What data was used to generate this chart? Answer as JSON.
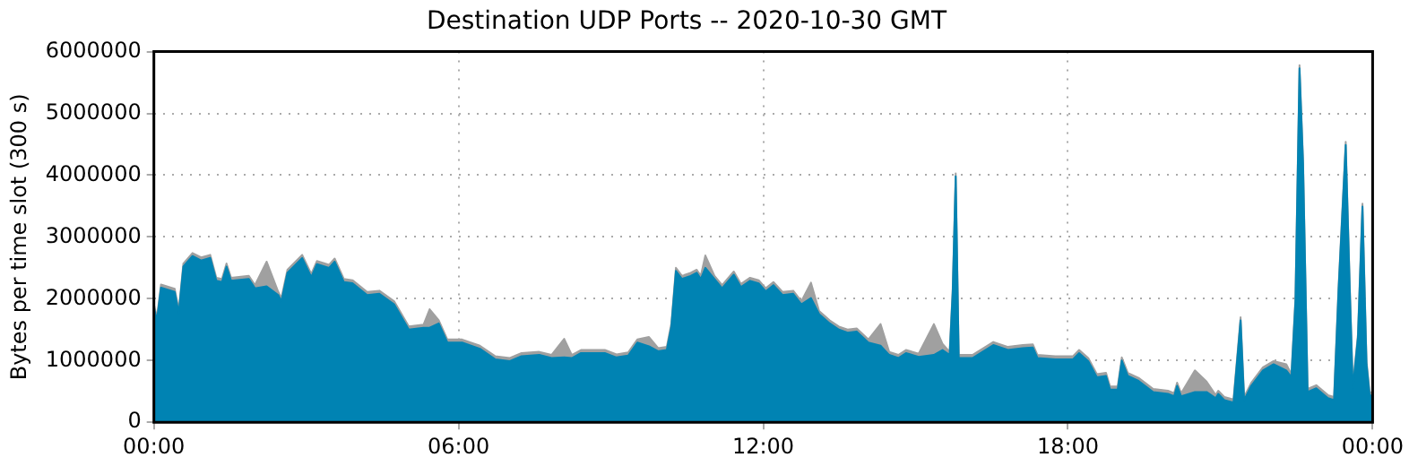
{
  "chart_data": {
    "type": "area",
    "title": "Destination UDP Ports -- 2020-10-30 GMT",
    "ylabel": "Bytes per time slot (300 s)",
    "x": [
      0,
      0.06,
      0.14,
      0.41,
      0.49,
      0.58,
      0.76,
      0.93,
      1.11,
      1.23,
      1.34,
      1.43,
      1.52,
      1.87,
      1.99,
      2.22,
      2.45,
      2.51,
      2.63,
      2.92,
      3.1,
      3.21,
      3.45,
      3.56,
      3.74,
      3.91,
      4.2,
      4.44,
      4.73,
      5.02,
      5.31,
      5.43,
      5.61,
      5.78,
      6.07,
      6.42,
      6.72,
      7.01,
      7.24,
      7.59,
      7.83,
      8.08,
      8.23,
      8.41,
      8.88,
      9.11,
      9.34,
      9.52,
      9.75,
      9.93,
      10.1,
      10.19,
      10.28,
      10.4,
      10.57,
      10.69,
      10.77,
      10.86,
      11.04,
      11.19,
      11.42,
      11.56,
      11.74,
      11.91,
      12.05,
      12.2,
      12.38,
      12.59,
      12.75,
      12.94,
      13.1,
      13.31,
      13.49,
      13.66,
      13.84,
      14.07,
      14.31,
      14.48,
      14.66,
      14.81,
      15.06,
      15.36,
      15.53,
      15.67,
      15.73,
      15.79,
      15.85,
      16.12,
      16.53,
      16.82,
      17.11,
      17.31,
      17.4,
      17.75,
      18.1,
      18.22,
      18.4,
      18.57,
      18.75,
      18.83,
      18.98,
      19.06,
      19.18,
      19.39,
      19.68,
      19.97,
      20.09,
      20.15,
      20.23,
      20.5,
      20.73,
      20.91,
      20.96,
      21.08,
      21.26,
      21.4,
      21.47,
      21.61,
      21.84,
      22.05,
      22.3,
      22.4,
      22.48,
      22.56,
      22.63,
      22.72,
      22.89,
      23.12,
      23.24,
      23.33,
      23.47,
      23.55,
      23.61,
      23.71,
      23.8,
      23.88,
      23.94,
      24
    ],
    "series": [
      {
        "color": "#0083b3",
        "values": [
          1860000,
          1650000,
          2180000,
          2110000,
          1770000,
          2520000,
          2690000,
          2620000,
          2660000,
          2290000,
          2270000,
          2520000,
          2290000,
          2320000,
          2170000,
          2200000,
          2060000,
          1960000,
          2420000,
          2660000,
          2350000,
          2560000,
          2500000,
          2600000,
          2270000,
          2250000,
          2060000,
          2080000,
          1910000,
          1500000,
          1530000,
          1530000,
          1600000,
          1290000,
          1290000,
          1190000,
          1020000,
          990000,
          1070000,
          1090000,
          1040000,
          1050000,
          1040000,
          1120000,
          1120000,
          1050000,
          1080000,
          1290000,
          1230000,
          1150000,
          1170000,
          1550000,
          2450000,
          2320000,
          2370000,
          2420000,
          2320000,
          2500000,
          2320000,
          2170000,
          2390000,
          2190000,
          2290000,
          2250000,
          2120000,
          2220000,
          2060000,
          2080000,
          1910000,
          2010000,
          1750000,
          1600000,
          1500000,
          1450000,
          1470000,
          1290000,
          1240000,
          1090000,
          1040000,
          1120000,
          1060000,
          1090000,
          1170000,
          1090000,
          2100000,
          3980000,
          1040000,
          1040000,
          1250000,
          1170000,
          1200000,
          1210000,
          1040000,
          1020000,
          1020000,
          1120000,
          990000,
          730000,
          750000,
          530000,
          530000,
          1000000,
          750000,
          670000,
          490000,
          460000,
          420000,
          590000,
          420000,
          490000,
          490000,
          390000,
          460000,
          360000,
          320000,
          1650000,
          360000,
          590000,
          840000,
          940000,
          840000,
          730000,
          1960000,
          5730000,
          4200000,
          490000,
          550000,
          390000,
          360000,
          2160000,
          4490000,
          2160000,
          550000,
          1370000,
          3490000,
          940000,
          450000,
          400000
        ]
      },
      {
        "color": "#a0a0a0",
        "values": [
          50000,
          50000,
          50000,
          50000,
          50000,
          50000,
          50000,
          50000,
          50000,
          50000,
          50000,
          50000,
          50000,
          50000,
          50000,
          400000,
          50000,
          50000,
          50000,
          50000,
          50000,
          50000,
          50000,
          50000,
          50000,
          50000,
          50000,
          50000,
          50000,
          50000,
          50000,
          300000,
          50000,
          50000,
          50000,
          50000,
          50000,
          50000,
          50000,
          50000,
          50000,
          300000,
          50000,
          50000,
          50000,
          50000,
          50000,
          50000,
          150000,
          50000,
          50000,
          50000,
          50000,
          50000,
          50000,
          50000,
          50000,
          200000,
          50000,
          50000,
          50000,
          50000,
          50000,
          50000,
          50000,
          50000,
          50000,
          50000,
          50000,
          250000,
          50000,
          50000,
          50000,
          50000,
          50000,
          50000,
          350000,
          50000,
          50000,
          50000,
          50000,
          500000,
          100000,
          50000,
          50000,
          50000,
          50000,
          50000,
          50000,
          50000,
          50000,
          50000,
          50000,
          50000,
          50000,
          50000,
          50000,
          50000,
          50000,
          50000,
          50000,
          50000,
          50000,
          50000,
          50000,
          50000,
          50000,
          50000,
          50000,
          350000,
          170000,
          50000,
          50000,
          50000,
          50000,
          50000,
          50000,
          50000,
          50000,
          50000,
          100000,
          50000,
          50000,
          50000,
          50000,
          50000,
          50000,
          50000,
          50000,
          50000,
          50000,
          50000,
          50000,
          50000,
          50000,
          50000,
          50000,
          50000
        ]
      }
    ],
    "stacked": true,
    "xlim": [
      0,
      24
    ],
    "xticks": [
      {
        "value": 0,
        "label": "00:00"
      },
      {
        "value": 6,
        "label": "06:00"
      },
      {
        "value": 12,
        "label": "12:00"
      },
      {
        "value": 18,
        "label": "18:00"
      },
      {
        "value": 24,
        "label": "00:00"
      }
    ],
    "ylim": [
      0,
      6000000
    ],
    "yticks": [
      0,
      1000000,
      2000000,
      3000000,
      4000000,
      5000000,
      6000000
    ],
    "grid": true,
    "legend": false
  }
}
